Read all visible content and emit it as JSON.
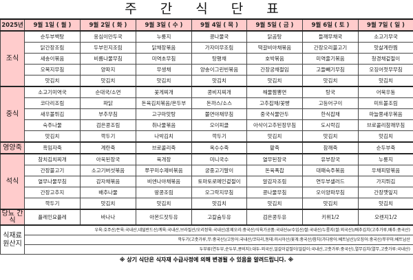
{
  "title": "주 간 식 단 표",
  "year_label": "2025년",
  "days": [
    "9월 1일 ( 월 )",
    "9월 2일 ( 화 )",
    "9월 3일 ( 수 )",
    "9월 4일 ( 목 )",
    "9월 5일 ( 금 )",
    "9월 6일 ( 토 )",
    "9월 7일 ( 일 )"
  ],
  "meals": [
    {
      "label": "조식",
      "rows": [
        [
          "순두부백탕",
          "옹심이만두국",
          "누룽지",
          "콩나물국",
          "닭곰탕",
          "들깨무채국",
          "소고기무국"
        ],
        [
          "닭간장조림",
          "두부민지조림",
          "닭채장볶음",
          "가자미무조림",
          "떡갈비야채볶음",
          "간장오리불고기",
          "맛살계란찜"
        ],
        [
          "새송이볶음",
          "비름나물무침",
          "미역초무침",
          "탕평채",
          "호박볶음",
          "미역줄기볶음",
          "청경채겉절이"
        ],
        [
          "오복지무침",
          "양파지",
          "무생채",
          "양송이그린빈볶음",
          "간장궁채절임",
          "고들빼기무침",
          "오징어젓무무침"
        ],
        [
          "맛김치",
          "맛김치",
          "맛김치",
          "맛김치",
          "맛김치",
          "맛김치",
          "맛김치"
        ]
      ]
    },
    {
      "label": "중식",
      "rows": [
        [
          "소고기미역국",
          "순대국/소면",
          "꽃게찌개",
          "콩비지찌개",
          "해물짬뽕면",
          "탕국",
          "어묵우동"
        ],
        [
          "코다리조림",
          "파닭",
          "돈육김치볶음/온두부",
          "돈까스/소스",
          "고추잡채/꽃빵",
          "고등어구이",
          "미트볼조림"
        ],
        [
          "새우볼튀김",
          "부추무침",
          "고구마맛탕",
          "쫄면야채무침",
          "중국식물만두",
          "한식잡채",
          "마늘쫑새우볶음"
        ],
        [
          "숙주나물",
          "검은콩조림",
          "취나물볶음",
          "오이피클",
          "아삭이고추된장무침",
          "도시락김",
          "브로콜리참깨무침"
        ],
        [
          "맛김치",
          "깍두기",
          "나박김치",
          "깍두기",
          "맛김치",
          "맛김치",
          "맛김치"
        ]
      ]
    },
    {
      "label": "영양죽",
      "rows": [
        [
          "흑임자죽",
          "계란죽",
          "브로콜리죽",
          "옥수수죽",
          "팥죽",
          "참깨죽",
          "순두부죽"
        ]
      ]
    },
    {
      "label": "석식",
      "rows": [
        [
          "참치김치찌개",
          "아욱된장국",
          "육개장",
          "미니국수",
          "열무된장국",
          "유부장국",
          "누룽지"
        ],
        [
          "간장불고기",
          "소고기버섯볶음",
          "쭈꾸미수제비볶음",
          "궁중고기말이",
          "돈육폭찹",
          "대패숙주볶음",
          "우채피망볶음"
        ],
        [
          "열무나물무침",
          "감자채볶음",
          "비엔나야채볶음",
          "토마토로메인겉절이",
          "알감자조림",
          "연두부샐러드",
          "가지튀김"
        ],
        [
          "간장고추지",
          "배추나물",
          "땅콩조림",
          "오그락지무침",
          "콩나물무침",
          "오이양파무침",
          "간장깻잎지"
        ],
        [
          "깍두기",
          "맛김치",
          "맛김치",
          "맛김치",
          "맛김치",
          "맛김치",
          "맛김치"
        ]
      ]
    },
    {
      "label": "당뇨 간식",
      "rows": [
        [
          "플레인요플레",
          "바나나",
          "아몬드잣두유",
          "고칼슘두유",
          "검은콩두유",
          "키위1/2",
          "오렌지1/2"
        ]
      ]
    }
  ],
  "origin": {
    "label": "식재료 원산지",
    "lines": [
      "우육:호주산/돈육:국내산,네덜란드산/계육:국내산,브라질산/오리정육:국내산/훈제오리:중국산/식육가공품:국내산or수입산/쌀:국내산/누룽지(쌀:외국산)/배추김치(고추가루,배추:중국산)",
      "깍두기(고춧가루,무:중국산)/고등어:국내산/코다리,동태:러시아산/꽃게:중국산/참치(가다랑어:베트남산)/오징어:중국산/쭈꾸미:베트남산",
      "두부류(연두부,순두부,콩비지):대두-외국산,얼갈이겉절이(얼갈이:국내산,고춧가루:중국산),열무김치(열무,고춧가루:국내산)"
    ]
  },
  "footer": "※ 상기 식단은 식자재 수급사정에 의해 변경될 수 있음을 알려드립니다. ※",
  "colors": {
    "header_bg": "#ffcccc",
    "border": "#444444"
  }
}
